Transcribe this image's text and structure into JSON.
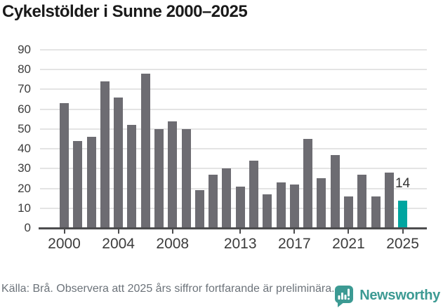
{
  "title": "Cykelstölder i Sunne 2000–2025",
  "chart_data": {
    "type": "bar",
    "title": "Cykelstölder i Sunne 2000–2025",
    "categories": [
      "2000",
      "2001",
      "2002",
      "2003",
      "2004",
      "2005",
      "2006",
      "2007",
      "2008",
      "2009",
      "2010",
      "2011",
      "2012",
      "2013",
      "2014",
      "2015",
      "2016",
      "2017",
      "2018",
      "2019",
      "2020",
      "2021",
      "2022",
      "2023",
      "2024",
      "2025"
    ],
    "values": [
      63,
      44,
      46,
      74,
      66,
      52,
      78,
      50,
      54,
      50,
      19,
      27,
      30,
      21,
      34,
      17,
      23,
      22,
      45,
      25,
      37,
      16,
      27,
      16,
      28,
      14
    ],
    "highlight_index": 25,
    "highlight_label": "14",
    "xlabel": "",
    "ylabel": "",
    "ylim": [
      0,
      90
    ],
    "yticks": [
      0,
      10,
      20,
      30,
      40,
      50,
      60,
      70,
      80,
      90
    ],
    "xticks": [
      "2000",
      "2004",
      "2008",
      "2013",
      "2017",
      "2021",
      "2025"
    ],
    "grid": true,
    "legend": false,
    "bar_color": "#6d6c72",
    "highlight_color": "#00a5a0",
    "gridline_color": "#e4e4e4",
    "axis_color": "#4c4c4e",
    "tick_label_color": "#3c3c3c"
  },
  "footer": {
    "source_text": "Källa: Brå. Observera att 2025 års siffror fortfarande är preliminära.",
    "brand": "Newsworthy",
    "brand_color": "#3c9a93",
    "logo_icon": "bar-chart-speech-bubble-icon"
  }
}
